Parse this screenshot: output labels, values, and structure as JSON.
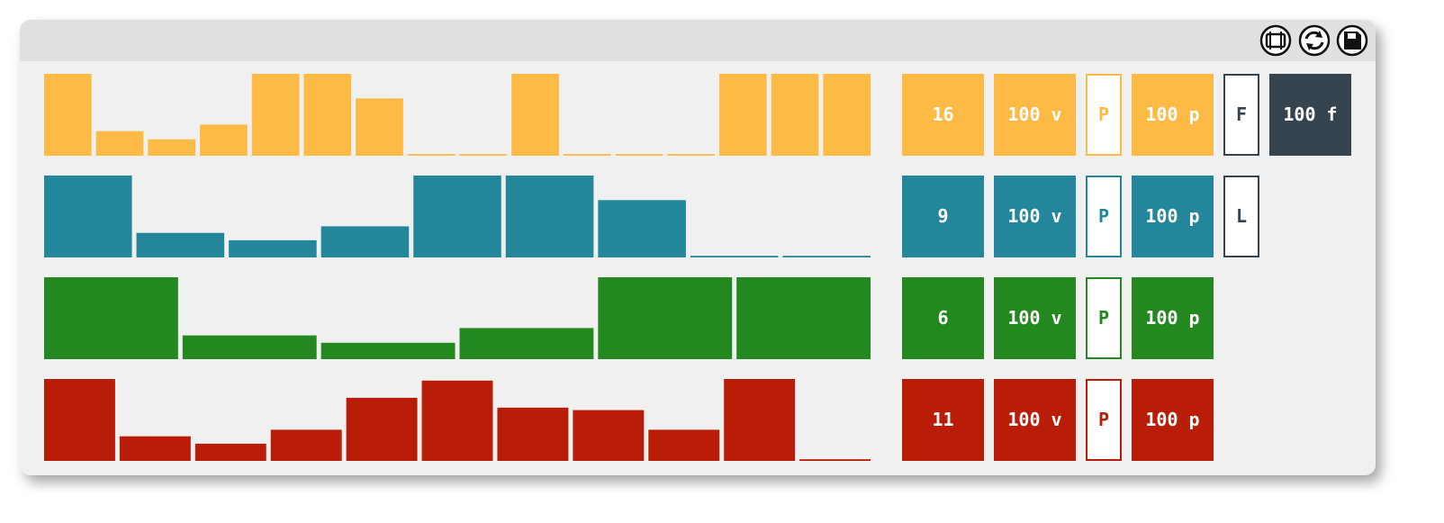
{
  "rows": [
    {
      "color": "#fdba45",
      "count": 16,
      "values": [
        100,
        30,
        20,
        38,
        100,
        100,
        70,
        2,
        2,
        100,
        2,
        2,
        2,
        100,
        100,
        100
      ],
      "buttons": [
        {
          "label": "100 v",
          "style": "fill"
        },
        {
          "label": "P",
          "style": "outline"
        },
        {
          "label": "100 p",
          "style": "fill"
        },
        {
          "label": "F",
          "style": "outline",
          "color": "#36444f"
        },
        {
          "label": "100 f",
          "style": "fill",
          "color": "#36444f"
        }
      ]
    },
    {
      "color": "#23869a",
      "count": 9,
      "values": [
        100,
        30,
        21,
        38,
        100,
        100,
        70,
        2,
        2
      ],
      "buttons": [
        {
          "label": "100 v",
          "style": "fill"
        },
        {
          "label": "P",
          "style": "outline"
        },
        {
          "label": "100 p",
          "style": "fill"
        },
        {
          "label": "L",
          "style": "outline",
          "color": "#36444f"
        }
      ]
    },
    {
      "color": "#22881f",
      "count": 6,
      "values": [
        100,
        29,
        20,
        38,
        100,
        100
      ],
      "buttons": [
        {
          "label": "100 v",
          "style": "fill"
        },
        {
          "label": "P",
          "style": "outline"
        },
        {
          "label": "100 p",
          "style": "fill"
        }
      ]
    },
    {
      "color": "#b91c07",
      "count": 11,
      "values": [
        100,
        30,
        21,
        38,
        77,
        98,
        65,
        62,
        38,
        100,
        2
      ],
      "buttons": [
        {
          "label": "100 v",
          "style": "fill"
        },
        {
          "label": "P",
          "style": "outline"
        },
        {
          "label": "100 p",
          "style": "fill"
        }
      ]
    }
  ]
}
